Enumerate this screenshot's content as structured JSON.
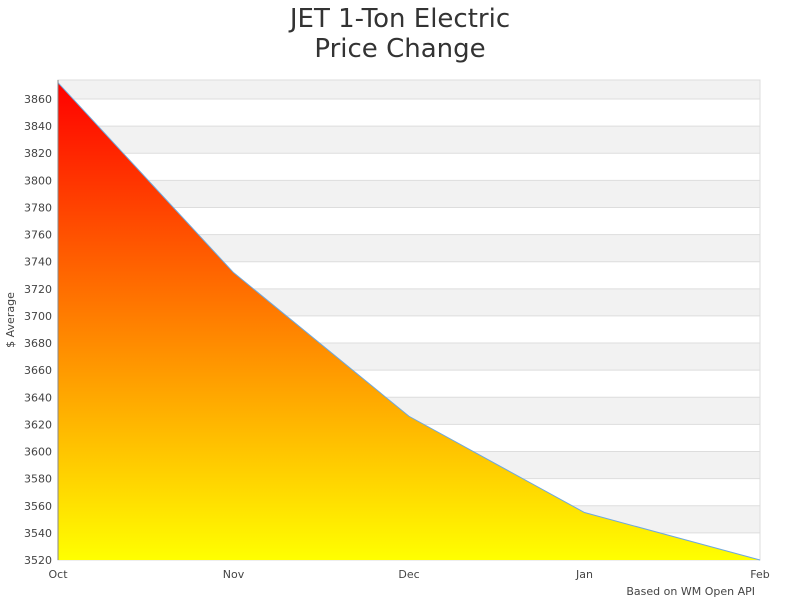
{
  "chart_data": {
    "type": "area",
    "title": [
      "JET 1-Ton Electric",
      "Price Change"
    ],
    "xlabel": "",
    "ylabel": "$ Average",
    "categories": [
      "Oct",
      "Nov",
      "Dec",
      "Jan",
      "Feb"
    ],
    "values": [
      3872,
      3732,
      3626,
      3555,
      3520
    ],
    "ylim": [
      3520,
      3874
    ],
    "yticks": [
      3520,
      3540,
      3560,
      3580,
      3600,
      3620,
      3640,
      3660,
      3680,
      3700,
      3720,
      3740,
      3760,
      3780,
      3800,
      3820,
      3840,
      3860
    ],
    "grid": true,
    "alternating_bands": true,
    "fill_gradient": [
      "#ff0000",
      "#ffff00"
    ],
    "line_color": "#6fa8dc",
    "credit": "Based on WM Open API"
  }
}
